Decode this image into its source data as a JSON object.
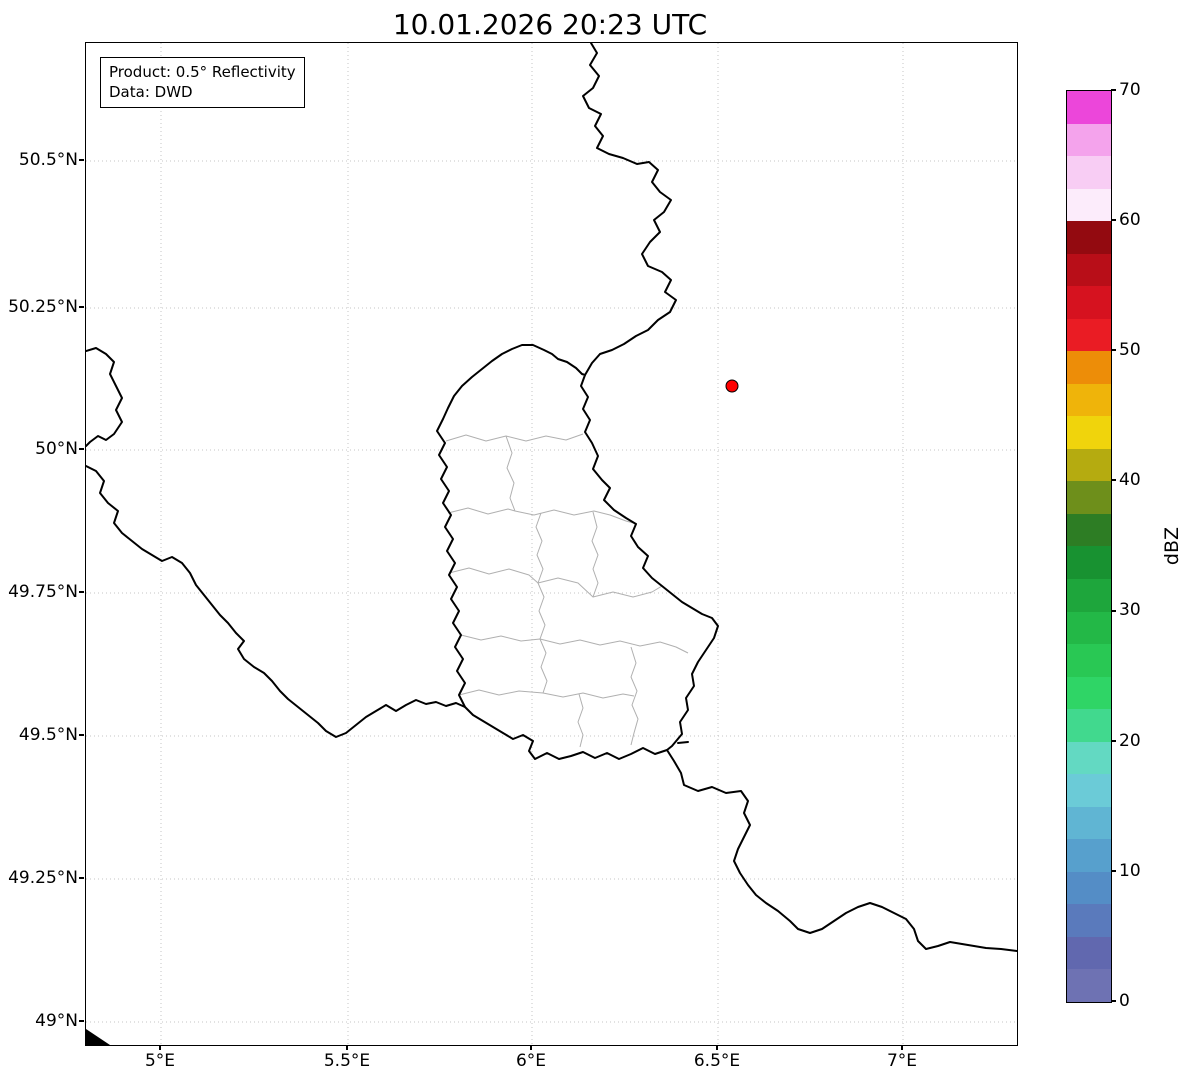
{
  "figure": {
    "title": "10.01.2026 20:23 UTC"
  },
  "annotation": {
    "product": "Product: 0.5° Reflectivity",
    "data_source": "Data: DWD"
  },
  "axes": {
    "x_ticks": [
      "5°E",
      "5.5°E",
      "6°E",
      "6.5°E",
      "7°E"
    ],
    "y_ticks": [
      "50.5°N",
      "50.25°N",
      "50°N",
      "49.75°N",
      "49.5°N",
      "49.25°N",
      "49°N"
    ]
  },
  "colorbar": {
    "label": "dBZ",
    "tick_labels": [
      "70",
      "60",
      "50",
      "40",
      "30",
      "20",
      "10",
      "0"
    ],
    "colors_bottom_to_top": [
      "#6e72b3",
      "#6168af",
      "#5a7abc",
      "#548dc6",
      "#57a0cd",
      "#60b5d3",
      "#6bcbd7",
      "#63d9c2",
      "#41d98e",
      "#2fd566",
      "#29c854",
      "#23b847",
      "#1ea63c",
      "#189231",
      "#2d7d24",
      "#6e8f1b",
      "#b5ab10",
      "#f0d40c",
      "#efb40a",
      "#ed8d08",
      "#ea1c24",
      "#d6121f",
      "#b80e18",
      "#930a10",
      "#fcecfb",
      "#f8cdf4",
      "#f4a3ec",
      "#ec46da"
    ]
  },
  "map": {
    "marker": {
      "color": "#ff0000",
      "edge_color": "#000000"
    },
    "border_color": "#000000",
    "district_border_color": "#b0b0b0",
    "grid_color": "#c4c4c4"
  }
}
